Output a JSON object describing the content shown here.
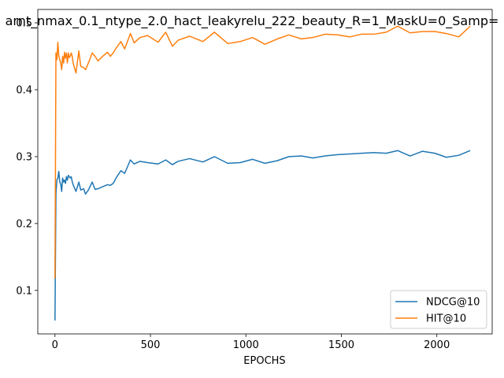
{
  "chart_data": {
    "type": "line",
    "title": "arnt_nmax_0.1_ntype_2.0_hact_leakyrelu_222_beauty_R=1_MaskU=0_Samp=",
    "xlabel": "EPOCHS",
    "ylabel": "",
    "xlim": [
      -90,
      2290
    ],
    "ylim": [
      0.035,
      0.52
    ],
    "xticks": [
      0,
      500,
      1000,
      1500,
      2000
    ],
    "yticks": [
      0.1,
      0.2,
      0.3,
      0.4,
      0.5
    ],
    "legend_position": "lower-right",
    "grid": false,
    "series": [
      {
        "name": "NDCG@10",
        "color": "#1f77b4",
        "x": [
          0,
          5,
          10,
          15,
          20,
          25,
          30,
          35,
          40,
          45,
          50,
          55,
          60,
          65,
          70,
          75,
          80,
          85,
          90,
          95,
          110,
          125,
          135,
          150,
          160,
          175,
          195,
          210,
          225,
          250,
          275,
          290,
          305,
          320,
          345,
          365,
          395,
          415,
          445,
          485,
          540,
          580,
          615,
          645,
          705,
          775,
          835,
          905,
          970,
          1035,
          1100,
          1165,
          1225,
          1290,
          1350,
          1415,
          1480,
          1545,
          1605,
          1670,
          1735,
          1795,
          1860,
          1925,
          1990,
          2050,
          2115,
          2175
        ],
        "y": [
          0.055,
          0.245,
          0.265,
          0.268,
          0.278,
          0.262,
          0.259,
          0.248,
          0.268,
          0.262,
          0.265,
          0.26,
          0.27,
          0.265,
          0.272,
          0.27,
          0.268,
          0.27,
          0.263,
          0.258,
          0.248,
          0.262,
          0.25,
          0.252,
          0.244,
          0.25,
          0.262,
          0.251,
          0.252,
          0.255,
          0.258,
          0.257,
          0.26,
          0.268,
          0.279,
          0.275,
          0.295,
          0.289,
          0.293,
          0.291,
          0.289,
          0.295,
          0.288,
          0.293,
          0.297,
          0.292,
          0.3,
          0.29,
          0.291,
          0.296,
          0.29,
          0.294,
          0.3,
          0.301,
          0.298,
          0.301,
          0.303,
          0.304,
          0.305,
          0.306,
          0.305,
          0.309,
          0.301,
          0.308,
          0.305,
          0.299,
          0.302,
          0.309
        ]
      },
      {
        "name": "HIT@10",
        "color": "#ff7f0e",
        "x": [
          0,
          5,
          10,
          15,
          20,
          25,
          30,
          35,
          40,
          45,
          50,
          55,
          60,
          65,
          70,
          75,
          80,
          85,
          90,
          95,
          110,
          125,
          135,
          150,
          160,
          175,
          195,
          210,
          225,
          250,
          275,
          290,
          305,
          320,
          345,
          365,
          395,
          415,
          445,
          485,
          540,
          580,
          615,
          645,
          705,
          775,
          835,
          905,
          970,
          1035,
          1100,
          1165,
          1225,
          1290,
          1350,
          1415,
          1480,
          1545,
          1605,
          1670,
          1735,
          1795,
          1860,
          1925,
          1990,
          2050,
          2115,
          2175
        ],
        "y": [
          0.118,
          0.455,
          0.445,
          0.471,
          0.45,
          0.445,
          0.44,
          0.43,
          0.45,
          0.44,
          0.456,
          0.447,
          0.455,
          0.44,
          0.455,
          0.448,
          0.45,
          0.455,
          0.45,
          0.44,
          0.425,
          0.458,
          0.435,
          0.433,
          0.43,
          0.44,
          0.455,
          0.45,
          0.443,
          0.45,
          0.456,
          0.45,
          0.455,
          0.462,
          0.472,
          0.461,
          0.484,
          0.47,
          0.478,
          0.481,
          0.471,
          0.486,
          0.465,
          0.474,
          0.48,
          0.472,
          0.486,
          0.469,
          0.472,
          0.478,
          0.468,
          0.476,
          0.482,
          0.476,
          0.478,
          0.483,
          0.482,
          0.479,
          0.483,
          0.483,
          0.486,
          0.495,
          0.485,
          0.487,
          0.487,
          0.484,
          0.479,
          0.495
        ]
      }
    ]
  }
}
